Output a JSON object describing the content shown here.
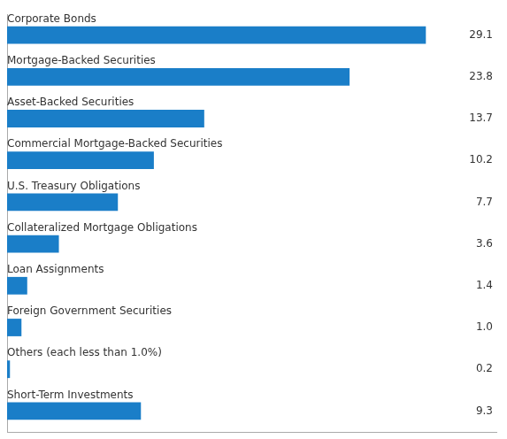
{
  "chart_data": {
    "type": "bar",
    "orientation": "horizontal",
    "categories": [
      "Corporate Bonds",
      "Mortgage-Backed Securities",
      "Asset-Backed Securities",
      "Commercial Mortgage-Backed Securities",
      "U.S. Treasury Obligations",
      "Collateralized Mortgage Obligations",
      "Loan Assignments",
      "Foreign Government Securities",
      "Others (each less than 1.0%)",
      "Short-Term Investments"
    ],
    "values": [
      29.1,
      23.8,
      13.7,
      10.2,
      7.7,
      3.6,
      1.4,
      1.0,
      0.2,
      9.3
    ],
    "value_labels": [
      "29.1",
      "23.8",
      "13.7",
      "10.2",
      "7.7",
      "3.6",
      "1.4",
      "1.0",
      "0.2",
      "9.3"
    ],
    "color": "#1A7EC8",
    "xlim": [
      0,
      34
    ],
    "grid": false,
    "data_labels": true,
    "tick_labels": false
  }
}
